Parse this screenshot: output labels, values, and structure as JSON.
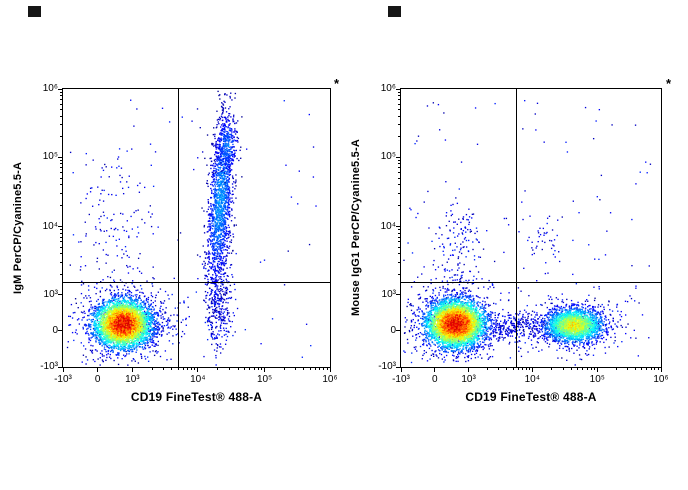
{
  "figure": {
    "background": "#ffffff",
    "axis_color": "#000000",
    "density_colormap": "jet (blue=low → red=high)",
    "sparse_dot_color": "#0000b4"
  },
  "chart_data": [
    {
      "type": "scatter",
      "flavor": "flow-cytometry-density-dot-plot",
      "title": "",
      "xlabel": "CD19 FineTest® 488-A",
      "ylabel": "IgM PerCP/Cyanine5.5-A",
      "annotation": "*",
      "x_scale": "biexponential",
      "y_scale": "biexponential",
      "grid": false,
      "legend": false,
      "x_ticks": [
        {
          "label": "-10³",
          "f": 0
        },
        {
          "label": "0",
          "f": 0.13
        },
        {
          "label": "10³",
          "f": 0.26
        },
        {
          "label": "10⁴",
          "f": 0.505
        },
        {
          "label": "10⁵",
          "f": 0.755
        },
        {
          "label": "10⁶",
          "f": 1
        }
      ],
      "y_ticks": [
        {
          "label": "-10³",
          "f": 0
        },
        {
          "label": "0",
          "f": 0.13
        },
        {
          "label": "10³",
          "f": 0.26
        },
        {
          "label": "10⁴",
          "f": 0.505
        },
        {
          "label": "10⁵",
          "f": 0.755
        },
        {
          "label": "10⁶",
          "f": 1
        }
      ],
      "quadrant_gate": {
        "x_fraction": 0.431,
        "y_fraction": 0.307
      },
      "coords": "axis-fraction (0 = -10³ end, 1 = 10⁶ end)",
      "populations": [
        {
          "name": "background-noise",
          "kind": "uniform",
          "x0": 0.02,
          "x1": 0.97,
          "y0": 0.03,
          "y1": 0.96,
          "events": 80,
          "colormap": "sparse-blue"
        },
        {
          "name": "negative-halo",
          "kind": "gaussian",
          "center": {
            "x": 0.225,
            "y": 0.16
          },
          "spread": {
            "x": 0.095,
            "y": 0.075
          },
          "events": 520,
          "colormap": "sparse-blue"
        },
        {
          "name": "upper-left-scatter",
          "kind": "gaussian",
          "center": {
            "x": 0.2,
            "y": 0.52
          },
          "spread": {
            "x": 0.07,
            "y": 0.13
          },
          "events": 130,
          "colormap": "sparse-blue"
        },
        {
          "name": "bottom-bridge",
          "kind": "gaussian",
          "center": {
            "x": 0.34,
            "y": 0.15
          },
          "spread": {
            "x": 0.05,
            "y": 0.028
          },
          "events": 130,
          "colormap": "sparse-blue"
        },
        {
          "name": "igm-pos-low-tail",
          "kind": "gaussian",
          "center": {
            "x": 0.585,
            "y": 0.24
          },
          "spread": {
            "x": 0.027,
            "y": 0.09
          },
          "events": 380,
          "colormap": "sparse-blue"
        },
        {
          "name": "cd19-pos-igm-pos-streak",
          "kind": "gaussian",
          "center": {
            "x": 0.59,
            "y": 0.6
          },
          "spread": {
            "x": 0.021,
            "y": 0.155
          },
          "events": 1500,
          "colormap": "density-jet",
          "peak": 0.27,
          "tilt": 0.07
        },
        {
          "name": "cd19-pos-igm-pos-top-clump",
          "kind": "gaussian",
          "center": {
            "x": 0.615,
            "y": 0.8
          },
          "spread": {
            "x": 0.02,
            "y": 0.05
          },
          "events": 260,
          "colormap": "density-jet",
          "peak": 0.24
        },
        {
          "name": "cd19-neg-igm-neg-main",
          "kind": "gaussian",
          "center": {
            "x": 0.225,
            "y": 0.155
          },
          "spread": {
            "x": 0.052,
            "y": 0.042
          },
          "events": 4200,
          "colormap": "density-jet",
          "peak": 0.9
        }
      ]
    },
    {
      "type": "scatter",
      "flavor": "flow-cytometry-density-dot-plot",
      "title": "",
      "xlabel": "CD19 FineTest® 488-A",
      "ylabel": "Mouse IgG1 PerCP/Cyanine5.5-A",
      "annotation": "*",
      "x_scale": "biexponential",
      "y_scale": "biexponential",
      "grid": false,
      "legend": false,
      "x_ticks": [
        {
          "label": "-10³",
          "f": 0
        },
        {
          "label": "0",
          "f": 0.13
        },
        {
          "label": "10³",
          "f": 0.26
        },
        {
          "label": "10⁴",
          "f": 0.505
        },
        {
          "label": "10⁵",
          "f": 0.755
        },
        {
          "label": "10⁶",
          "f": 1
        }
      ],
      "y_ticks": [
        {
          "label": "-10³",
          "f": 0
        },
        {
          "label": "0",
          "f": 0.13
        },
        {
          "label": "10³",
          "f": 0.26
        },
        {
          "label": "10⁴",
          "f": 0.505
        },
        {
          "label": "10⁵",
          "f": 0.755
        },
        {
          "label": "10⁶",
          "f": 1
        }
      ],
      "quadrant_gate": {
        "x_fraction": 0.443,
        "y_fraction": 0.307
      },
      "coords": "axis-fraction (0 = -10³ end, 1 = 10⁶ end)",
      "populations": [
        {
          "name": "background-noise",
          "kind": "uniform",
          "x0": 0.02,
          "x1": 0.97,
          "y0": 0.03,
          "y1": 0.96,
          "events": 110,
          "colormap": "sparse-blue"
        },
        {
          "name": "negative-halo",
          "kind": "gaussian",
          "center": {
            "x": 0.21,
            "y": 0.16
          },
          "spread": {
            "x": 0.1,
            "y": 0.08
          },
          "events": 550,
          "colormap": "sparse-blue"
        },
        {
          "name": "above-negative-trail",
          "kind": "gaussian",
          "center": {
            "x": 0.21,
            "y": 0.32
          },
          "spread": {
            "x": 0.05,
            "y": 0.08
          },
          "events": 90,
          "colormap": "sparse-blue"
        },
        {
          "name": "upper-scatter-left",
          "kind": "gaussian",
          "center": {
            "x": 0.22,
            "y": 0.47
          },
          "spread": {
            "x": 0.045,
            "y": 0.055
          },
          "events": 85,
          "colormap": "sparse-blue"
        },
        {
          "name": "upper-scatter-mid",
          "kind": "gaussian",
          "center": {
            "x": 0.55,
            "y": 0.46
          },
          "spread": {
            "x": 0.035,
            "y": 0.05
          },
          "events": 40,
          "colormap": "sparse-blue"
        },
        {
          "name": "bottom-bridge",
          "kind": "gaussian",
          "center": {
            "x": 0.43,
            "y": 0.145
          },
          "spread": {
            "x": 0.085,
            "y": 0.024
          },
          "events": 300,
          "colormap": "sparse-blue"
        },
        {
          "name": "cd19-pos-halo",
          "kind": "gaussian",
          "center": {
            "x": 0.665,
            "y": 0.155
          },
          "spread": {
            "x": 0.1,
            "y": 0.055
          },
          "events": 380,
          "colormap": "sparse-blue"
        },
        {
          "name": "cd19-pos-igg1-neg",
          "kind": "gaussian",
          "center": {
            "x": 0.665,
            "y": 0.15
          },
          "spread": {
            "x": 0.055,
            "y": 0.03
          },
          "events": 2300,
          "colormap": "density-jet",
          "peak": 0.62
        },
        {
          "name": "cd19-neg-igg1-neg-main",
          "kind": "gaussian",
          "center": {
            "x": 0.21,
            "y": 0.155
          },
          "spread": {
            "x": 0.055,
            "y": 0.042
          },
          "events": 4300,
          "colormap": "density-jet",
          "peak": 0.9
        }
      ]
    }
  ]
}
